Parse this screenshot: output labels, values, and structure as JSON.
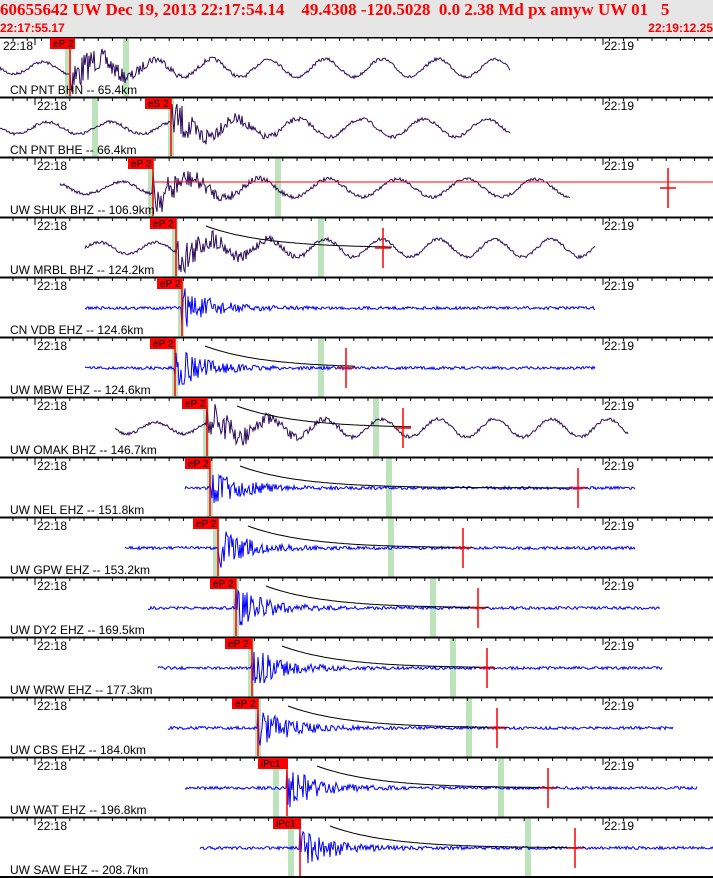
{
  "header": {
    "title": "60655642 UW Dec 19, 2013 22:17:54.14    49.4308 -120.5028  0.0 2.38 Md px amyw UW 01   5",
    "start_time": "22:17:55.17",
    "end_time": "22:19:12.25"
  },
  "time_labels": [
    "22:18",
    "22:19"
  ],
  "colors": {
    "broadband": "#2b0a5c",
    "short_period": "#0000ff",
    "pick": "#ff0000",
    "window": "#bde3bd"
  },
  "channels": [
    {
      "label": "CN PNT BHN -- 65.4km",
      "pick": "eP 2",
      "type": "BH"
    },
    {
      "label": "CN PNT BHE -- 66.4km",
      "pick": "eS 2",
      "type": "BH"
    },
    {
      "label": "UW SHUK BHZ -- 106.9km",
      "pick": "eP 2",
      "type": "BH"
    },
    {
      "label": "UW MRBL BHZ -- 124.2km",
      "pick": "eP 2",
      "type": "BH"
    },
    {
      "label": "CN VDB EHZ -- 124.6km",
      "pick": "eP 2",
      "type": "EH"
    },
    {
      "label": "UW MBW EHZ -- 124.6km",
      "pick": "eP 2",
      "type": "EH"
    },
    {
      "label": "UW OMAK BHZ -- 146.7km",
      "pick": "eP 2",
      "type": "BH"
    },
    {
      "label": "UW NEL EHZ -- 151.8km",
      "pick": "eP 2",
      "type": "EH"
    },
    {
      "label": "UW GPW EHZ -- 153.2km",
      "pick": "eP 2",
      "type": "EH"
    },
    {
      "label": "UW DY2 EHZ -- 169.5km",
      "pick": "eP 2",
      "type": "EH"
    },
    {
      "label": "UW WRW EHZ -- 177.3km",
      "pick": "eP 2",
      "type": "EH"
    },
    {
      "label": "UW CBS EHZ -- 184.0km",
      "pick": "eP 2",
      "type": "EH"
    },
    {
      "label": "UW WAT EHZ -- 196.8km",
      "pick": "iPc1",
      "type": "EH"
    },
    {
      "label": "UW SAW EHZ -- 208.7km",
      "pick": "iPc1",
      "type": "EH"
    }
  ]
}
